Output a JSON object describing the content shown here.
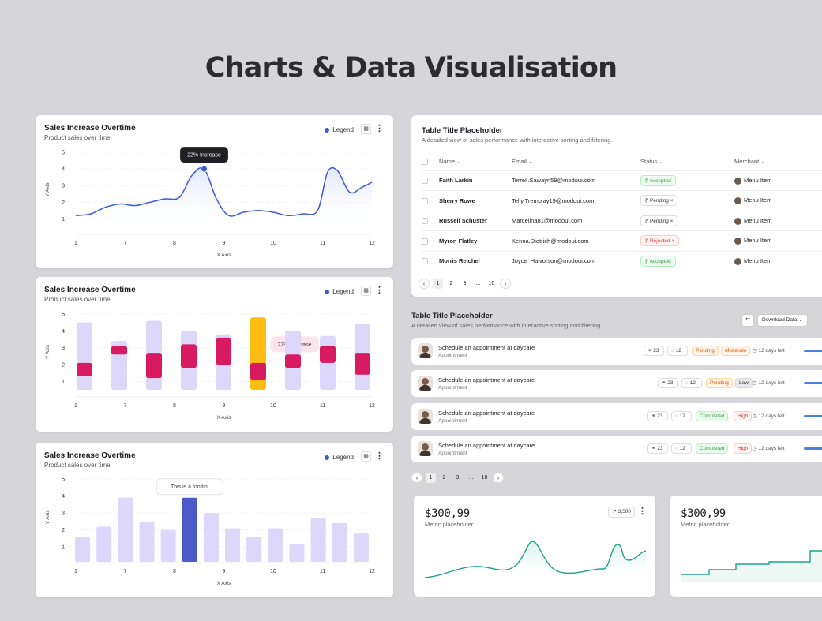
{
  "page": {
    "title": "Charts & Data Visualisation"
  },
  "charts": [
    {
      "title": "Sales Increase Overtime",
      "subtitle": "Product sales over time.",
      "legend": "Legend",
      "tooltip": "22% Increase",
      "xlabel": "X Axis",
      "ylabel": "Y Axis"
    },
    {
      "title": "Sales Increase Overtime",
      "subtitle": "Product sales over time.",
      "legend": "Legend",
      "tooltip": "22% Increase",
      "xlabel": "X Axis",
      "ylabel": "Y Axis"
    },
    {
      "title": "Sales Increase Overtime",
      "subtitle": "Product sales over time.",
      "legend": "Legend",
      "tooltip": "This is a tooltip!",
      "xlabel": "X Axis",
      "ylabel": "Y Axis"
    }
  ],
  "chart_data": [
    {
      "type": "line",
      "x_ticks": [
        "1",
        "7",
        "8",
        "9",
        "10",
        "11",
        "12"
      ],
      "y_ticks": [
        "1",
        "2",
        "3",
        "4",
        "5"
      ],
      "ylim": [
        0.5,
        5
      ],
      "x": [
        0,
        0.3,
        0.6,
        0.9,
        1.2,
        1.5,
        1.8,
        2.1,
        2.35,
        2.6,
        2.85,
        3.1,
        3.4,
        3.7,
        4.0,
        4.3,
        4.6,
        4.9,
        5.1,
        5.3,
        5.55,
        5.8,
        6.0
      ],
      "y": [
        1.2,
        1.3,
        1.7,
        1.9,
        1.8,
        2.0,
        2.2,
        2.3,
        3.6,
        4.0,
        2.2,
        1.2,
        1.4,
        1.5,
        1.4,
        1.2,
        1.3,
        1.5,
        3.8,
        3.9,
        2.6,
        2.9,
        3.2
      ],
      "highlight": {
        "x": 2.6,
        "y": 4.0
      },
      "line_color": "#3b5bdb"
    },
    {
      "type": "bar",
      "x_ticks": [
        "1",
        "7",
        "8",
        "9",
        "10",
        "11",
        "12"
      ],
      "y_ticks": [
        "1",
        "2",
        "3",
        "4",
        "5"
      ],
      "ylim": [
        0.5,
        5
      ],
      "series": [
        {
          "values": [
            4.5,
            3.4,
            4.6,
            4.0,
            3.8,
            4.8,
            4.0,
            3.7,
            4.4
          ]
        },
        {
          "low": [
            1.3,
            2.6,
            1.2,
            1.8,
            2.0,
            1.1,
            1.8,
            2.1,
            1.4
          ],
          "high": [
            2.1,
            3.1,
            2.7,
            3.2,
            3.6,
            2.1,
            2.6,
            3.1,
            2.7
          ]
        }
      ],
      "highlight_index": 5,
      "colors": {
        "background": "#ddd8fb",
        "foreground": "#d81b60",
        "highlight": "#fdbc12",
        "tooltip_bg": "#fce4ec"
      }
    },
    {
      "type": "bar",
      "x_ticks": [
        "1",
        "7",
        "8",
        "9",
        "10",
        "11",
        "12"
      ],
      "y_ticks": [
        "1",
        "2",
        "3",
        "4",
        "5"
      ],
      "ylim": [
        0.5,
        5
      ],
      "values": [
        1.6,
        2.2,
        3.9,
        2.5,
        2.0,
        3.9,
        3.0,
        2.1,
        1.6,
        2.1,
        1.2,
        2.7,
        2.4,
        1.8
      ],
      "highlight_index": 5,
      "colors": {
        "bar": "#ddd8fb",
        "highlight": "#4a5bc9"
      }
    }
  ],
  "table": {
    "title": "Table Title Placeholder",
    "subtitle": "A detailed view of sales performance with interactive sorting and filtering.",
    "columns": [
      "Name",
      "Email",
      "Status",
      "Merchant"
    ],
    "rows": [
      {
        "name": "Faith Larkin",
        "email": "Terrell.Sawayn59@modoui.com",
        "status": "Accepted",
        "merchant": "Menu Item"
      },
      {
        "name": "Sherry Rowe",
        "email": "Telly.Tremblay19@modoui.com",
        "status": "Pending",
        "merchant": "Menu Item"
      },
      {
        "name": "Russell Schuster",
        "email": "Marcelina81@modoui.com",
        "status": "Pending",
        "merchant": "Menu Item"
      },
      {
        "name": "Myron Flatley",
        "email": "Kenna.Dietrich@modoui.com",
        "status": "Rejected",
        "merchant": "Menu Item"
      },
      {
        "name": "Morris Reichel",
        "email": "Joyce_Halvorson@modoui.com",
        "status": "Accepted",
        "merchant": "Menu Item"
      }
    ],
    "pagination": [
      "1",
      "2",
      "3",
      "...",
      "10"
    ]
  },
  "list": {
    "title": "Table Title Placeholder",
    "subtitle": "A detailed view of sales performance with interactive sorting and filtering.",
    "download_label": "Download Data",
    "items": [
      {
        "title": "Schedule an appointment at daycare",
        "subtitle": "Appointment",
        "links": "23",
        "comments": "12",
        "status": "Pending",
        "priority": "Moderate",
        "due": "12 days left"
      },
      {
        "title": "Schedule an appointment at daycare",
        "subtitle": "Appointment",
        "links": "23",
        "comments": "12",
        "status": "Pending",
        "priority": "Low",
        "due": "12 days left"
      },
      {
        "title": "Schedule an appointment at daycare",
        "subtitle": "Appointment",
        "links": "23",
        "comments": "12",
        "status": "Completed",
        "priority": "High",
        "due": "12 days left"
      },
      {
        "title": "Schedule an appointment at daycare",
        "subtitle": "Appointment",
        "links": "23",
        "comments": "12",
        "status": "Completed",
        "priority": "High",
        "due": "12 days left"
      }
    ],
    "pagination": [
      "1",
      "2",
      "3",
      "...",
      "10"
    ]
  },
  "metrics": [
    {
      "value": "$300,99",
      "label": "Metric placeholder",
      "chip": "3,500",
      "color": "#20a08a"
    },
    {
      "value": "$300,99",
      "label": "Metric placeholder",
      "color": "#20a08a"
    }
  ]
}
